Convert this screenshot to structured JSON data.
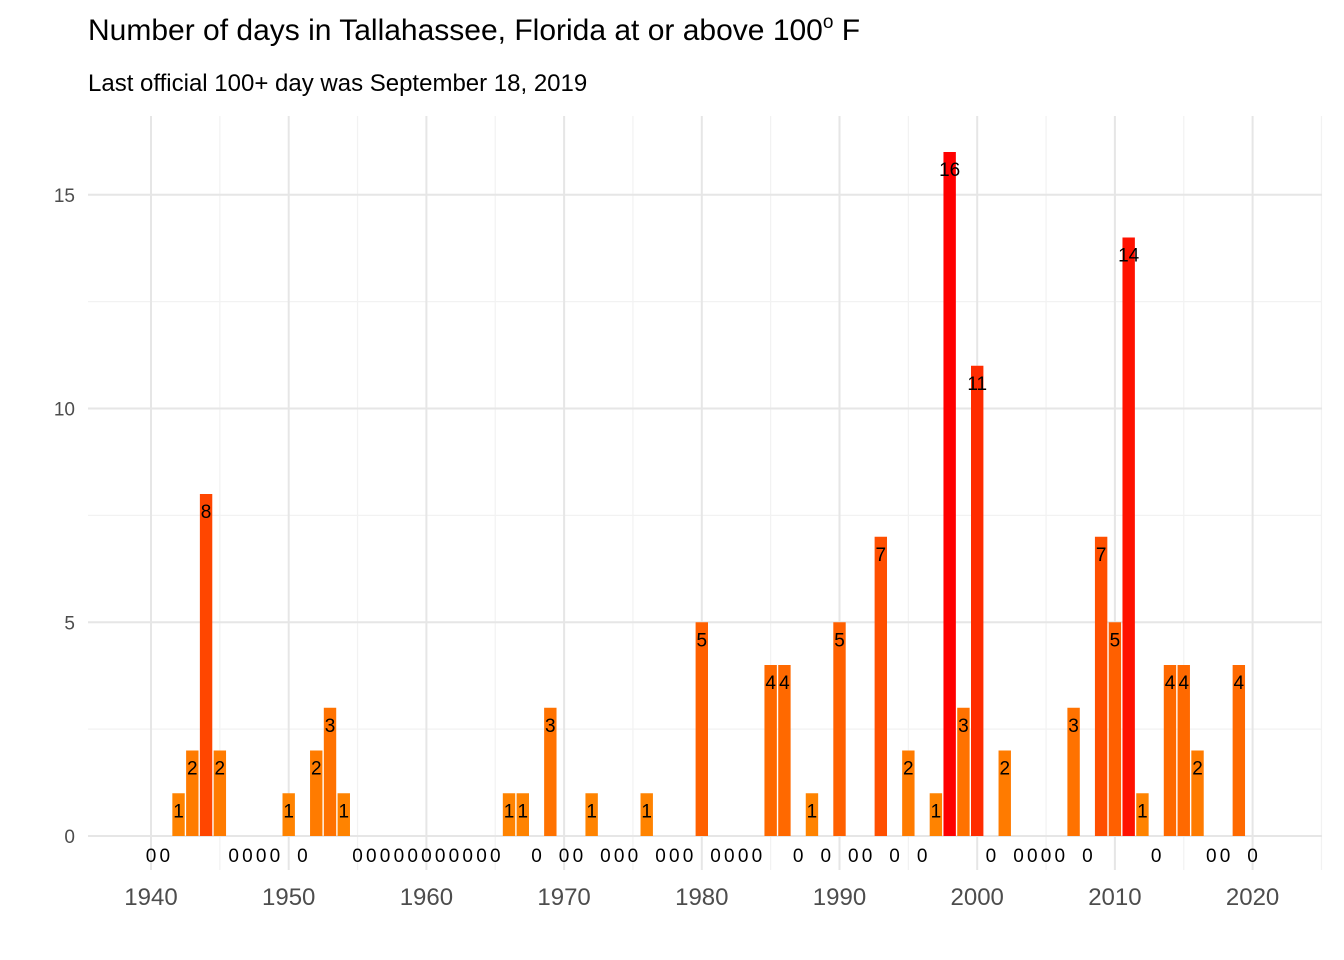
{
  "title": {
    "main": "Number of days in Tallahassee, Florida at or above 100",
    "degree": "o",
    "unit": "F"
  },
  "subtitle": "Last official 100+ day was September 18, 2019",
  "chart_data": {
    "type": "bar",
    "xlim": [
      1936,
      2025
    ],
    "ylim": [
      0,
      16.6
    ],
    "x_ticks": [
      1940,
      1950,
      1960,
      1970,
      1980,
      1990,
      2000,
      2010,
      2020
    ],
    "y_ticks": [
      0,
      5,
      10,
      15
    ],
    "grid": true,
    "legend": "none",
    "color_low": "#FF8C00",
    "color_high": "#FF0000",
    "series": [
      {
        "x": [
          1940,
          1941,
          1942,
          1943,
          1944,
          1945,
          1946,
          1947,
          1948,
          1949,
          1950,
          1951,
          1952,
          1953,
          1954,
          1955,
          1956,
          1957,
          1958,
          1959,
          1960,
          1961,
          1962,
          1963,
          1964,
          1965,
          1966,
          1967,
          1968,
          1969,
          1970,
          1971,
          1972,
          1973,
          1974,
          1975,
          1976,
          1977,
          1978,
          1979,
          1980,
          1981,
          1982,
          1983,
          1984,
          1985,
          1986,
          1987,
          1988,
          1989,
          1990,
          1991,
          1992,
          1993,
          1994,
          1995,
          1996,
          1997,
          1998,
          1999,
          2000,
          2001,
          2002,
          2003,
          2004,
          2005,
          2006,
          2007,
          2008,
          2009,
          2010,
          2011,
          2012,
          2013,
          2014,
          2015,
          2016,
          2017,
          2018,
          2019,
          2020
        ],
        "values": [
          0,
          0,
          1,
          2,
          8,
          2,
          0,
          0,
          0,
          0,
          1,
          0,
          2,
          3,
          1,
          0,
          0,
          0,
          0,
          0,
          0,
          0,
          0,
          0,
          0,
          0,
          1,
          1,
          0,
          3,
          0,
          0,
          1,
          0,
          0,
          0,
          1,
          0,
          0,
          0,
          5,
          0,
          0,
          0,
          0,
          4,
          4,
          0,
          1,
          0,
          5,
          0,
          0,
          7,
          0,
          2,
          0,
          1,
          16,
          3,
          11,
          0,
          2,
          0,
          0,
          0,
          0,
          3,
          0,
          7,
          5,
          14,
          1,
          0,
          4,
          4,
          2,
          0,
          0,
          4,
          0
        ]
      }
    ]
  }
}
